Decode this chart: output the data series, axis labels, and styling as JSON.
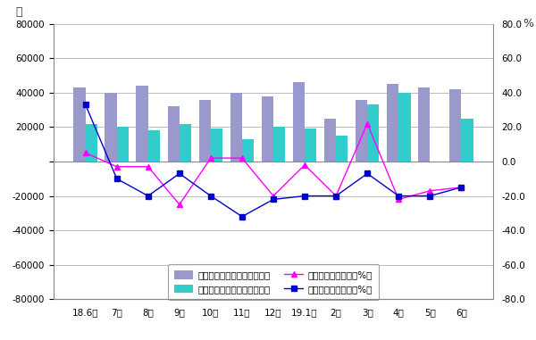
{
  "months": [
    "18.6月",
    "7月",
    "8月",
    "9月",
    "10月",
    "11月",
    "12月",
    "19.1月",
    "2月",
    "3月",
    "4月",
    "5月",
    "6月"
  ],
  "cutting_volume": [
    43000,
    40000,
    44000,
    32000,
    36000,
    40000,
    38000,
    46000,
    25000,
    36000,
    45000,
    43000,
    42000
  ],
  "forming_volume": [
    22000,
    20000,
    18000,
    22000,
    19000,
    13000,
    20000,
    19000,
    15000,
    33000,
    40000,
    0,
    25000
  ],
  "cutting_pct": [
    5.0,
    -3.0,
    -3.0,
    -25.0,
    2.0,
    2.0,
    -20.0,
    -2.0,
    -20.0,
    22.0,
    -22.0,
    -17.0,
    -15.0
  ],
  "forming_pct": [
    33.0,
    -10.0,
    -20.0,
    -7.0,
    -20.0,
    -32.0,
    -22.0,
    -20.0,
    -20.0,
    -7.0,
    -20.0,
    -20.0,
    -15.0
  ],
  "bar_color_cutting": "#9999cc",
  "bar_color_forming": "#33cccc",
  "line_color_cutting": "#ff00ff",
  "line_color_forming": "#0000cc",
  "ylabel_left": "台",
  "ylabel_right": "%",
  "ylim_left": [
    -80000,
    80000
  ],
  "ylim_right": [
    -80.0,
    80.0
  ],
  "yticks_left": [
    -80000,
    -60000,
    -40000,
    -20000,
    0,
    20000,
    40000,
    60000,
    80000
  ],
  "yticks_right": [
    -80.0,
    -60.0,
    -40.0,
    -20.0,
    0.0,
    20.0,
    40.0,
    60.0,
    80.0
  ],
  "legend_labels": [
    "金属切削机床月度产量（台）",
    "金属成形机床月度产量（台）",
    "金属切削机床同比（%）",
    "金属成形机床同比（%）"
  ],
  "background_color": "#ffffff",
  "grid_color": "#bbbbbb",
  "border_color": "#888888"
}
